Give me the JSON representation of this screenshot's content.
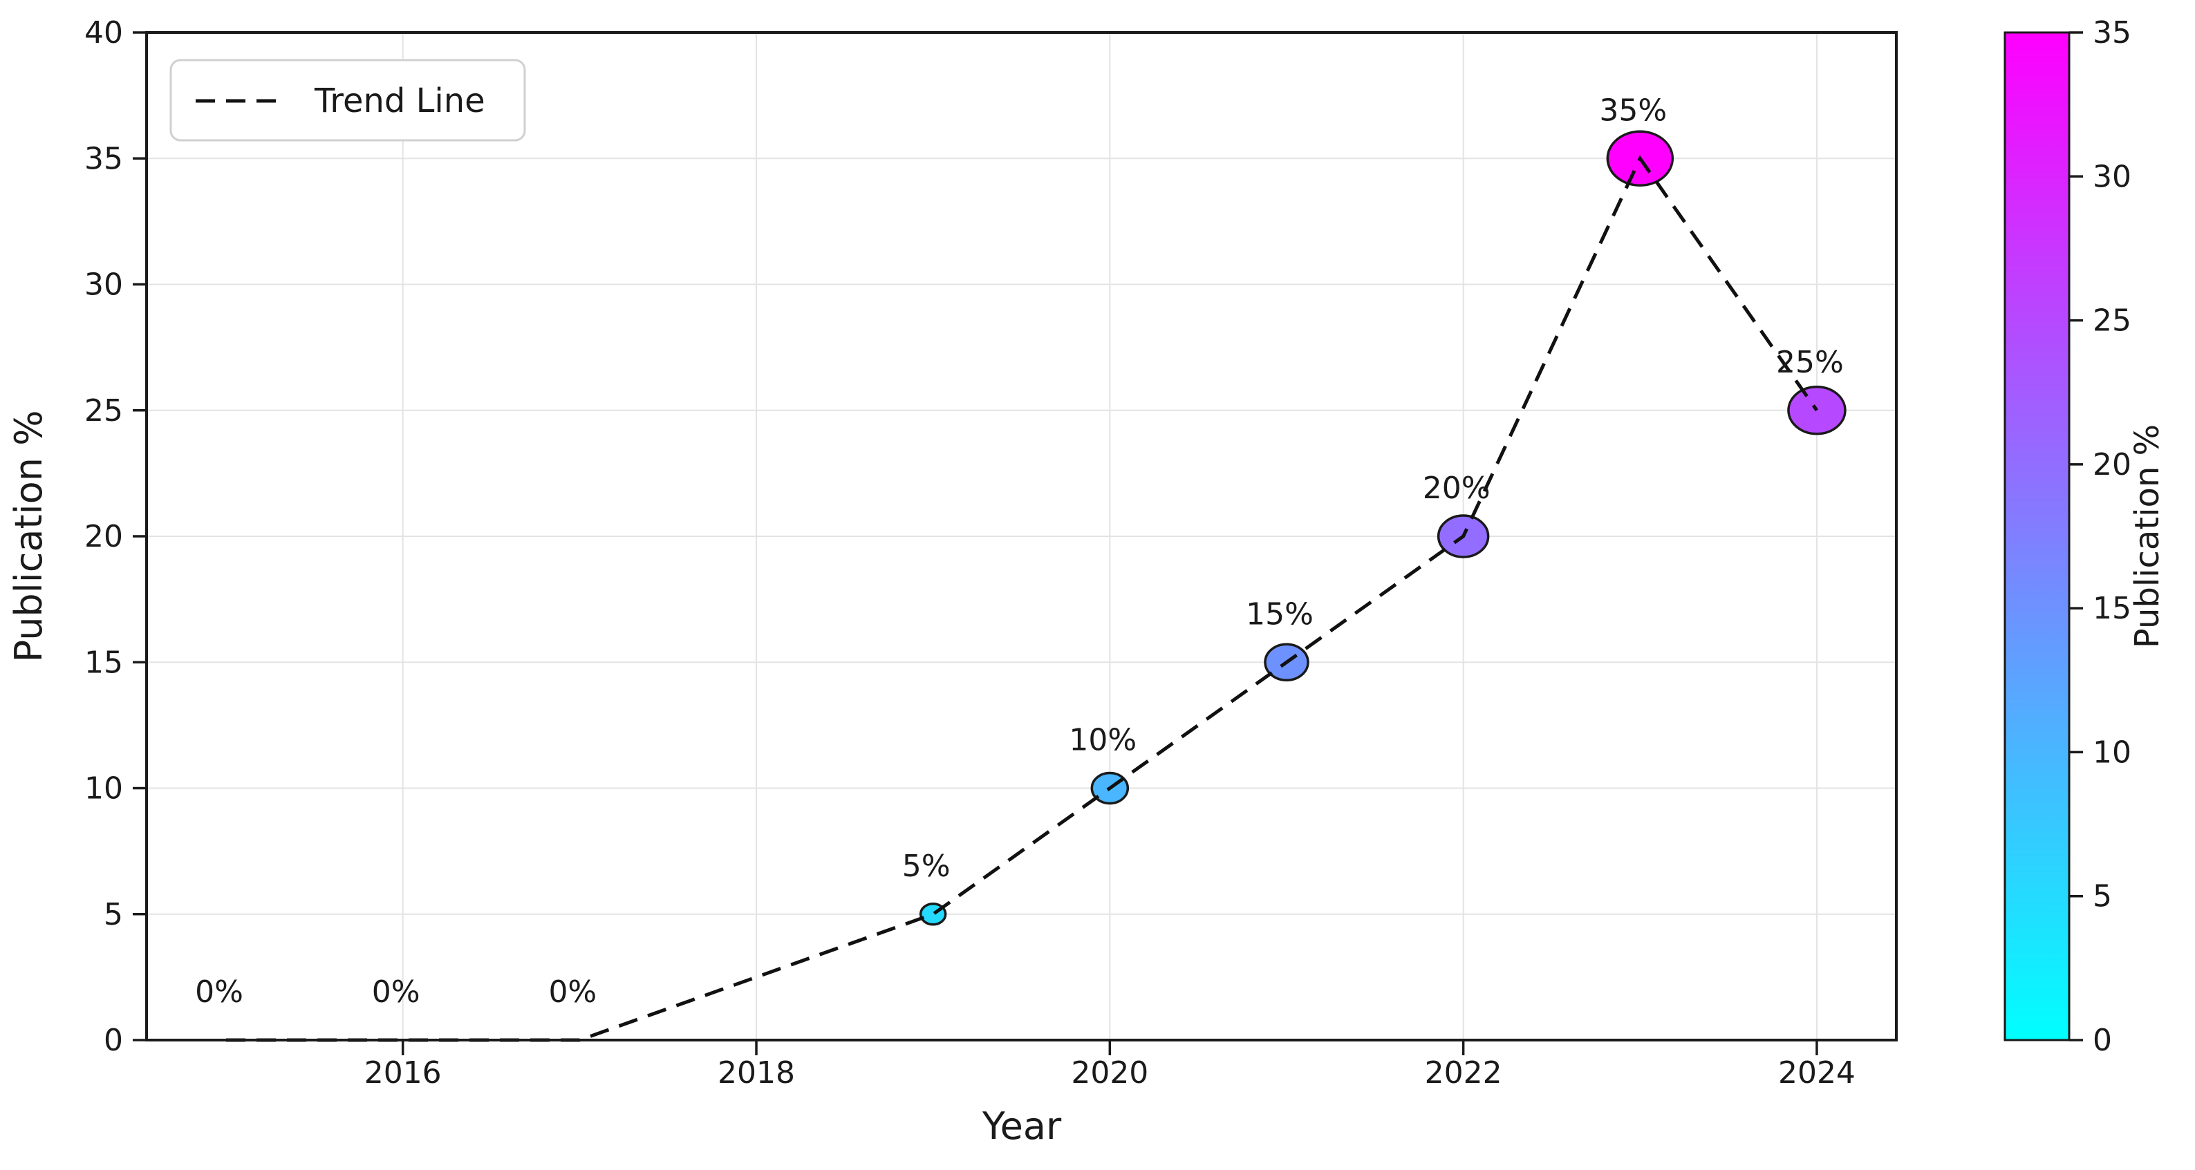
{
  "chart_data": {
    "type": "scatter",
    "title": "",
    "xlabel": "Year",
    "ylabel": "Publication %",
    "xlim": [
      2014.55,
      2024.45
    ],
    "ylim": [
      0,
      40
    ],
    "x_ticks": [
      2016,
      2018,
      2020,
      2022,
      2024
    ],
    "y_ticks": [
      0,
      5,
      10,
      15,
      20,
      25,
      30,
      35,
      40
    ],
    "grid": true,
    "legend": {
      "label": "Trend Line",
      "position": "upper-left",
      "line_style": "dashed",
      "line_color": "#111111"
    },
    "trend_line": {
      "style": "dashed",
      "color": "#111111"
    },
    "points": [
      {
        "year": 2015,
        "value": 0,
        "label": "0%",
        "color": "#00FFFF",
        "marker_radius": 0
      },
      {
        "year": 2016,
        "value": 0,
        "label": "0%",
        "color": "#00FFFF",
        "marker_radius": 0
      },
      {
        "year": 2017,
        "value": 0,
        "label": "0%",
        "color": "#00FFFF",
        "marker_radius": 0
      },
      {
        "year": 2019,
        "value": 5,
        "label": "5%",
        "color": "#24DBFF",
        "marker_radius": 18
      },
      {
        "year": 2020,
        "value": 10,
        "label": "10%",
        "color": "#49B6FF",
        "marker_radius": 26
      },
      {
        "year": 2021,
        "value": 15,
        "label": "15%",
        "color": "#6D92FF",
        "marker_radius": 31
      },
      {
        "year": 2022,
        "value": 20,
        "label": "20%",
        "color": "#926DFF",
        "marker_radius": 36
      },
      {
        "year": 2023,
        "value": 35,
        "label": "35%",
        "color": "#FF00FF",
        "marker_radius": 47
      },
      {
        "year": 2024,
        "value": 25,
        "label": "25%",
        "color": "#B649FF",
        "marker_radius": 41
      }
    ],
    "colorbar": {
      "label": "Publication %",
      "min": 0,
      "max": 35,
      "ticks": [
        0,
        5,
        10,
        15,
        20,
        25,
        30,
        35
      ],
      "top_color": "#FF00FF",
      "bottom_color": "#00FFFF"
    }
  }
}
